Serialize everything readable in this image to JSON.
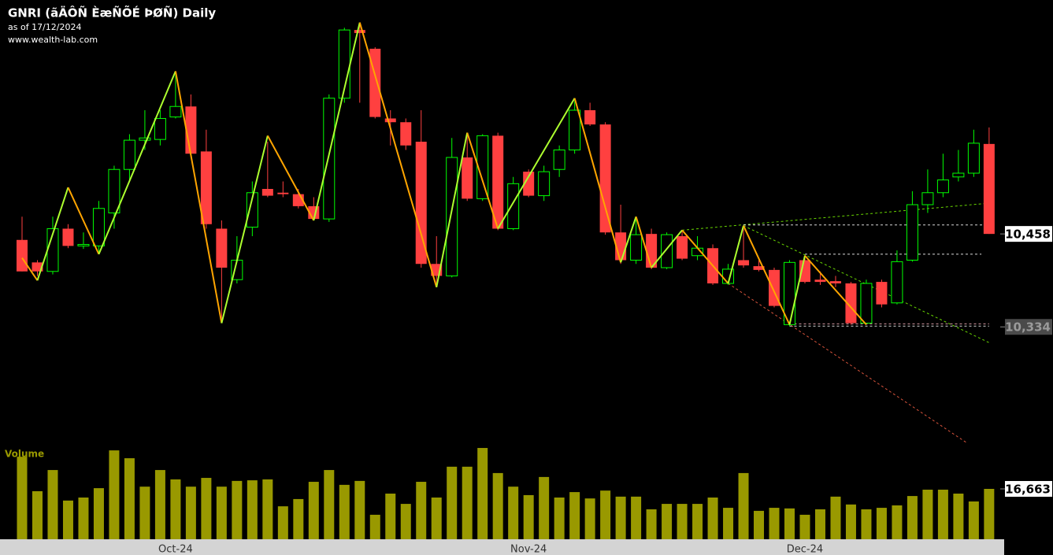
{
  "chart_data": [
    {
      "type": "candlestick",
      "title": "GNRI (ãÄÔÑ ÈæÑÕÉ ÞØÑ) Daily",
      "subtitle": "as of 17/12/2024",
      "source": "www.wealth-lab.com",
      "categories": [
        null,
        null,
        null,
        null,
        null,
        null,
        null,
        null,
        null,
        null,
        "Oct-24",
        null,
        null,
        null,
        null,
        null,
        null,
        null,
        null,
        null,
        null,
        null,
        null,
        null,
        null,
        null,
        null,
        null,
        null,
        null,
        null,
        null,
        null,
        "Nov-24",
        null,
        null,
        null,
        null,
        null,
        null,
        null,
        null,
        null,
        null,
        null,
        null,
        null,
        null,
        null,
        null,
        null,
        "Dec-24",
        null,
        null,
        null,
        null,
        null,
        null,
        null,
        null,
        null,
        null,
        null,
        null
      ],
      "open": [
        10450,
        10420,
        10408,
        10465,
        10442,
        10442,
        10486,
        10544,
        10583,
        10584,
        10614,
        10628,
        10568,
        10465,
        10397,
        10467,
        10518,
        10513,
        10511,
        10495,
        10478,
        10639,
        10730,
        10705,
        10612,
        10607,
        10581,
        10418,
        10402,
        10560,
        10505,
        10589,
        10465,
        10541,
        10509,
        10544,
        10570,
        10623,
        10604,
        10460,
        10423,
        10458,
        10413,
        10455,
        10429,
        10439,
        10392,
        10423,
        10415,
        10410,
        10337,
        10423,
        10397,
        10395,
        10392,
        10339,
        10394,
        10366,
        10423,
        10497,
        10513,
        10534,
        10539,
        10578
      ],
      "high": [
        10481,
        10423,
        10481,
        10471,
        10460,
        10502,
        10549,
        10591,
        10623,
        10623,
        10670,
        10644,
        10597,
        10476,
        10455,
        10528,
        10581,
        10528,
        10518,
        10507,
        10644,
        10733,
        10740,
        10707,
        10623,
        10612,
        10623,
        10455,
        10586,
        10591,
        10591,
        10593,
        10534,
        10544,
        10549,
        10576,
        10635,
        10633,
        10607,
        10497,
        10481,
        10465,
        10460,
        10463,
        10455,
        10444,
        10418,
        10465,
        10423,
        10413,
        10423,
        10429,
        10408,
        10402,
        10394,
        10397,
        10397,
        10436,
        10515,
        10544,
        10565,
        10570,
        10597,
        10600
      ],
      "low": [
        10408,
        10402,
        10404,
        10439,
        10438,
        10432,
        10465,
        10528,
        10570,
        10576,
        10612,
        10560,
        10465,
        10339,
        10392,
        10455,
        10507,
        10507,
        10492,
        10476,
        10474,
        10633,
        10633,
        10612,
        10576,
        10570,
        10413,
        10387,
        10400,
        10502,
        10502,
        10463,
        10463,
        10507,
        10502,
        10534,
        10565,
        10602,
        10457,
        10418,
        10418,
        10411,
        10411,
        10423,
        10423,
        10390,
        10390,
        10413,
        10408,
        10360,
        10335,
        10392,
        10390,
        10387,
        10337,
        10337,
        10360,
        10364,
        10421,
        10486,
        10507,
        10528,
        10534,
        10458
      ],
      "close": [
        10408,
        10408,
        10465,
        10442,
        10444,
        10492,
        10544,
        10583,
        10586,
        10612,
        10628,
        10565,
        10471,
        10413,
        10423,
        10513,
        10509,
        10511,
        10495,
        10478,
        10639,
        10730,
        10726,
        10614,
        10607,
        10576,
        10418,
        10402,
        10560,
        10505,
        10589,
        10465,
        10525,
        10509,
        10541,
        10570,
        10623,
        10604,
        10460,
        10423,
        10457,
        10413,
        10457,
        10425,
        10439,
        10392,
        10411,
        10416,
        10410,
        10362,
        10420,
        10394,
        10394,
        10392,
        10339,
        10392,
        10364,
        10421,
        10497,
        10513,
        10530,
        10539,
        10579,
        10458
      ],
      "up_color": "#00ff00",
      "down_color": "#ff4040",
      "ylim": [
        10182,
        10770
      ],
      "yticks": [
        {
          "value": 10458,
          "label": "10,458"
        },
        {
          "value": 10334,
          "label": "10,334"
        }
      ],
      "zigzag": {
        "x": [
          0,
          1,
          3,
          5,
          10,
          13,
          16,
          19,
          22,
          27,
          29,
          31,
          36,
          39,
          40,
          41,
          43,
          46,
          47,
          50,
          51,
          55
        ],
        "values": [
          10426,
          10396,
          10520,
          10431,
          10675,
          10339,
          10589,
          10476,
          10740,
          10387,
          10593,
          10465,
          10639,
          10420,
          10481,
          10413,
          10463,
          10392,
          10469,
          10337,
          10429,
          10337
        ],
        "up_color": "#adff2f",
        "down_color": "#ffa500"
      },
      "trendlines": [
        {
          "x": [
            43,
            63
          ],
          "values": [
            10463,
            10499
          ],
          "color": "#7cfc00"
        },
        {
          "x": [
            47,
            63
          ],
          "values": [
            10469,
            10313
          ],
          "color": "#7cfc00"
        },
        {
          "x": [
            46,
            61.5
          ],
          "values": [
            10392,
            10180
          ],
          "color": "#ff6347"
        },
        {
          "x": [
            47,
            63
          ],
          "values": [
            10470,
            10470
          ],
          "color": "#ffffff"
        },
        {
          "x": [
            51,
            62.5
          ],
          "values": [
            10431,
            10431
          ],
          "color": "#ffffff"
        },
        {
          "x": [
            50,
            63
          ],
          "values": [
            10338,
            10338
          ],
          "color": "#ffb6c1"
        },
        {
          "x": [
            50,
            63
          ],
          "values": [
            10335,
            10335
          ],
          "color": "#ffffff"
        }
      ]
    },
    {
      "type": "bar",
      "title": "Volume",
      "values": [
        27300,
        15900,
        22900,
        12800,
        13800,
        16900,
        29400,
        26800,
        17400,
        22900,
        19800,
        17400,
        20300,
        17400,
        19300,
        19500,
        19800,
        10900,
        13300,
        19000,
        22900,
        18000,
        19300,
        8100,
        15100,
        11700,
        19000,
        13800,
        24000,
        24000,
        30200,
        21900,
        17400,
        14600,
        20600,
        13800,
        15600,
        13500,
        16100,
        14100,
        14100,
        9900,
        11700,
        11700,
        11700,
        13800,
        10400,
        21900,
        9400,
        10400,
        10200,
        8100,
        9900,
        14100,
        11500,
        9900,
        10400,
        11200,
        14300,
        16400,
        16400,
        15100,
        12500,
        16663
      ],
      "color": "#999900",
      "ylim": [
        0,
        31250
      ],
      "yticks": [
        {
          "value": 16663,
          "label": "16,663"
        }
      ]
    }
  ]
}
